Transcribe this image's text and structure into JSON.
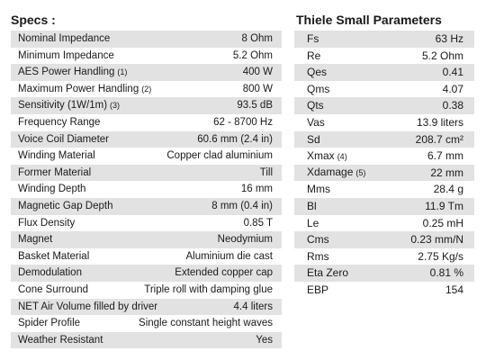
{
  "specs": {
    "title": "Specs :",
    "rows": [
      {
        "label": "Nominal Impedance",
        "note": "",
        "value": "8 Ohm"
      },
      {
        "label": "Minimum Impedance",
        "note": "",
        "value": "5.2 Ohm"
      },
      {
        "label": "AES Power Handling",
        "note": "(1)",
        "value": "400 W"
      },
      {
        "label": "Maximum Power Handling",
        "note": "(2)",
        "value": "800 W"
      },
      {
        "label": "Sensitivity (1W/1m)",
        "note": "(3)",
        "value": "93.5 dB"
      },
      {
        "label": "Frequency Range",
        "note": "",
        "value": "62 - 8700 Hz"
      },
      {
        "label": "Voice Coil Diameter",
        "note": "",
        "value": "60.6 mm (2.4 in)"
      },
      {
        "label": "Winding Material",
        "note": "",
        "value": "Copper clad aluminium"
      },
      {
        "label": "Former Material",
        "note": "",
        "value": "Till"
      },
      {
        "label": "Winding Depth",
        "note": "",
        "value": "16 mm"
      },
      {
        "label": "Magnetic Gap Depth",
        "note": "",
        "value": "8 mm (0.4 in)"
      },
      {
        "label": "Flux Density",
        "note": "",
        "value": "0.85 T"
      },
      {
        "label": "Magnet",
        "note": "",
        "value": "Neodymium"
      },
      {
        "label": "Basket Material",
        "note": "",
        "value": "Aluminium die cast"
      },
      {
        "label": "Demodulation",
        "note": "",
        "value": "Extended copper cap"
      },
      {
        "label": "Cone Surround",
        "note": "",
        "value": "Triple roll with damping glue"
      },
      {
        "label": "NET Air Volume filled by driver",
        "note": "",
        "value": "4.4 liters"
      },
      {
        "label": "Spider Profile",
        "note": "",
        "value": "Single constant height waves"
      },
      {
        "label": "Weather Resistant",
        "note": "",
        "value": "Yes"
      }
    ]
  },
  "thiele_small": {
    "title": "Thiele Small Parameters",
    "rows": [
      {
        "label": "Fs",
        "note": "",
        "value": "63 Hz"
      },
      {
        "label": "Re",
        "note": "",
        "value": "5.2 Ohm"
      },
      {
        "label": "Qes",
        "note": "",
        "value": "0.41"
      },
      {
        "label": "Qms",
        "note": "",
        "value": "4.07"
      },
      {
        "label": "Qts",
        "note": "",
        "value": "0.38"
      },
      {
        "label": "Vas",
        "note": "",
        "value": "13.9 liters"
      },
      {
        "label": "Sd",
        "note": "",
        "value": "208.7 cm²"
      },
      {
        "label": "Xmax",
        "note": "(4)",
        "value": "6.7 mm"
      },
      {
        "label": "Xdamage",
        "note": "(5)",
        "value": "22 mm"
      },
      {
        "label": "Mms",
        "note": "",
        "value": "28.4 g"
      },
      {
        "label": "Bl",
        "note": "",
        "value": "11.9 Tm"
      },
      {
        "label": "Le",
        "note": "",
        "value": "0.25 mH"
      },
      {
        "label": "Cms",
        "note": "",
        "value": "0.23 mm/N"
      },
      {
        "label": "Rms",
        "note": "",
        "value": "2.75 Kg/s"
      },
      {
        "label": "Eta Zero",
        "note": "",
        "value": "0.81 %"
      },
      {
        "label": "EBP",
        "note": "",
        "value": "154"
      }
    ]
  }
}
